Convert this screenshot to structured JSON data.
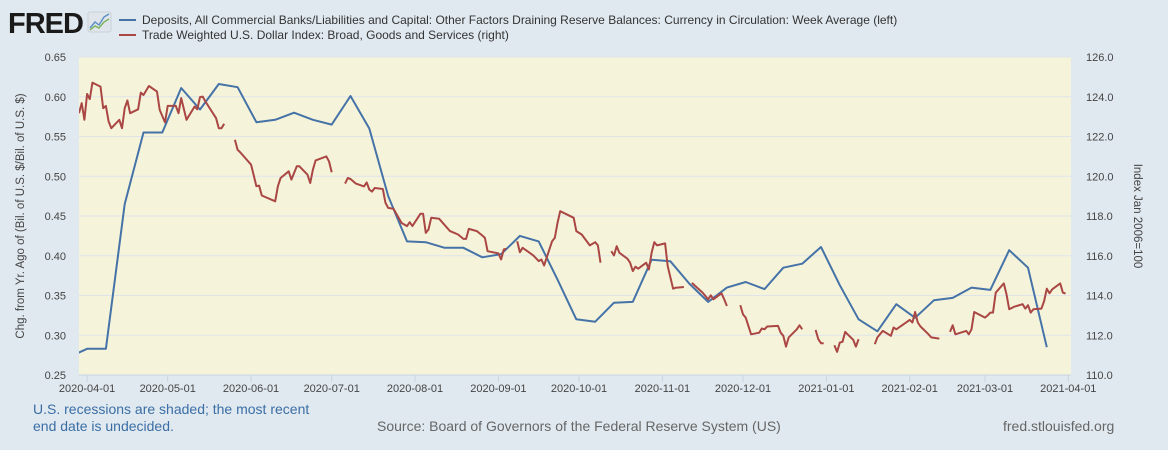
{
  "header": {
    "logo_text": "FRED"
  },
  "notes": {
    "recession_line1": "U.S. recessions are shaded; the most recent",
    "recession_line2": "end date is undecided.",
    "source": "Source: Board of Governors of the Federal Reserve System (US)",
    "site": "fred.stlouisfed.org"
  },
  "colors": {
    "series1": "#4572a7",
    "series2": "#aa4643",
    "plot_bg": "#f5f4da",
    "page_bg": "#e1e9f0",
    "grid": "#dfe3ea"
  },
  "chart_data": {
    "type": "line",
    "title": "",
    "legend_placement": "top",
    "grid": true,
    "x_range": [
      "2020-03-29",
      "2021-04-02"
    ],
    "x_ticks": [
      "2020-04-01",
      "2020-05-01",
      "2020-06-01",
      "2020-07-01",
      "2020-08-01",
      "2020-09-01",
      "2020-10-01",
      "2020-11-01",
      "2020-12-01",
      "2021-01-01",
      "2021-02-01",
      "2021-03-01",
      "2021-04-01"
    ],
    "ylabel_left": "Chg. from Yr. Ago of (Bil. of U.S. $/Bil. of U.S. $)",
    "ylabel_right": "Index Jan 2006=100",
    "ylim_left": [
      0.25,
      0.65
    ],
    "ylim_right": [
      110,
      126
    ],
    "y_left_ticks": [
      "0.25",
      "0.30",
      "0.35",
      "0.40",
      "0.45",
      "0.50",
      "0.55",
      "0.60",
      "0.65"
    ],
    "y_right_ticks": [
      "110.0",
      "112.0",
      "114.0",
      "116.0",
      "118.0",
      "120.0",
      "122.0",
      "124.0",
      "126.0"
    ],
    "series": [
      {
        "name": "Deposits, All Commercial Banks/Liabilities and Capital: Other Factors Draining Reserve Balances: Currency in Circulation: Week Average (left)",
        "axis": "left",
        "start": "2020-03-25",
        "step_days": 7,
        "values": [
          0.272,
          0.283,
          0.283,
          0.465,
          0.555,
          0.555,
          0.611,
          0.584,
          0.616,
          0.612,
          0.568,
          0.571,
          0.58,
          0.571,
          0.565,
          0.601,
          0.56,
          0.475,
          0.418,
          0.417,
          0.41,
          0.41,
          0.398,
          0.402,
          0.425,
          0.418,
          0.37,
          0.32,
          0.317,
          0.341,
          0.342,
          0.395,
          0.393,
          0.365,
          0.342,
          0.36,
          0.367,
          0.358,
          0.385,
          0.39,
          0.411,
          0.363,
          0.32,
          0.305,
          0.339,
          0.322,
          0.344,
          0.347,
          0.36,
          0.357,
          0.407,
          0.385,
          0.285
        ]
      },
      {
        "name": "Trade Weighted U.S. Dollar Index: Broad, Goods and Services (right)",
        "axis": "right",
        "segments": [
          [
            [
              "2020-03-29",
              123.17
            ],
            [
              "2020-03-30",
              123.68
            ],
            [
              "2020-03-31",
              122.84
            ],
            [
              "2020-04-01",
              124.14
            ],
            [
              "2020-04-02",
              123.88
            ],
            [
              "2020-04-03",
              124.71
            ],
            [
              "2020-04-06",
              124.51
            ],
            [
              "2020-04-07",
              123.42
            ],
            [
              "2020-04-08",
              123.54
            ],
            [
              "2020-04-09",
              122.76
            ],
            [
              "2020-04-10",
              122.42
            ],
            [
              "2020-04-13",
              122.84
            ],
            [
              "2020-04-14",
              122.42
            ],
            [
              "2020-04-15",
              123.42
            ],
            [
              "2020-04-16",
              123.81
            ],
            [
              "2020-04-17",
              123.17
            ],
            [
              "2020-04-20",
              123.37
            ],
            [
              "2020-04-21",
              124.21
            ],
            [
              "2020-04-22",
              124.09
            ],
            [
              "2020-04-24",
              124.54
            ],
            [
              "2020-04-27",
              124.26
            ],
            [
              "2020-04-28",
              123.34
            ],
            [
              "2020-04-30",
              122.71
            ],
            [
              "2020-05-01",
              123.54
            ],
            [
              "2020-05-04",
              123.54
            ],
            [
              "2020-05-05",
              123.17
            ],
            [
              "2020-05-06",
              123.93
            ],
            [
              "2020-05-08",
              122.84
            ],
            [
              "2020-05-11",
              123.51
            ],
            [
              "2020-05-12",
              123.37
            ],
            [
              "2020-05-13",
              123.98
            ],
            [
              "2020-05-14",
              124.01
            ],
            [
              "2020-05-15",
              123.76
            ],
            [
              "2020-05-19",
              122.92
            ],
            [
              "2020-05-20",
              122.42
            ],
            [
              "2020-05-21",
              122.42
            ],
            [
              "2020-05-22",
              122.64
            ]
          ],
          [
            [
              "2020-05-26",
              121.84
            ],
            [
              "2020-05-27",
              121.33
            ],
            [
              "2020-05-28",
              121.2
            ],
            [
              "2020-06-01",
              120.58
            ],
            [
              "2020-06-03",
              119.5
            ],
            [
              "2020-06-04",
              119.53
            ],
            [
              "2020-06-05",
              119.03
            ],
            [
              "2020-06-10",
              118.74
            ],
            [
              "2020-06-11",
              119.5
            ],
            [
              "2020-06-12",
              119.91
            ],
            [
              "2020-06-15",
              120.25
            ],
            [
              "2020-06-16",
              119.83
            ],
            [
              "2020-06-18",
              120.5
            ],
            [
              "2020-06-19",
              120.5
            ],
            [
              "2020-06-22",
              120.08
            ],
            [
              "2020-06-23",
              119.66
            ],
            [
              "2020-06-24",
              120.33
            ],
            [
              "2020-06-25",
              120.8
            ],
            [
              "2020-06-29",
              121.0
            ],
            [
              "2020-06-30",
              120.75
            ],
            [
              "2020-07-01",
              120.2
            ]
          ],
          [
            [
              "2020-07-06",
              119.63
            ],
            [
              "2020-07-07",
              119.91
            ],
            [
              "2020-07-08",
              119.86
            ],
            [
              "2020-07-10",
              119.63
            ],
            [
              "2020-07-13",
              119.49
            ],
            [
              "2020-07-14",
              119.69
            ],
            [
              "2020-07-15",
              119.33
            ],
            [
              "2020-07-16",
              119.23
            ],
            [
              "2020-07-17",
              119.41
            ],
            [
              "2020-07-20",
              119.36
            ],
            [
              "2020-07-21",
              118.66
            ],
            [
              "2020-07-22",
              118.41
            ],
            [
              "2020-07-24",
              118.36
            ],
            [
              "2020-07-27",
              117.65
            ],
            [
              "2020-07-29",
              117.49
            ],
            [
              "2020-07-30",
              117.69
            ],
            [
              "2020-07-31",
              117.49
            ],
            [
              "2020-08-03",
              118.11
            ],
            [
              "2020-08-04",
              118.11
            ],
            [
              "2020-08-05",
              117.15
            ],
            [
              "2020-08-06",
              117.32
            ],
            [
              "2020-08-07",
              117.91
            ],
            [
              "2020-08-10",
              117.86
            ],
            [
              "2020-08-14",
              117.24
            ],
            [
              "2020-08-17",
              117.07
            ],
            [
              "2020-08-19",
              116.85
            ],
            [
              "2020-08-20",
              116.85
            ],
            [
              "2020-08-21",
              117.35
            ],
            [
              "2020-08-24",
              117.24
            ],
            [
              "2020-08-26",
              117.02
            ],
            [
              "2020-08-27",
              116.9
            ],
            [
              "2020-08-28",
              116.23
            ],
            [
              "2020-09-01",
              116.12
            ],
            [
              "2020-09-02",
              115.81
            ],
            [
              "2020-09-03",
              116.32
            ],
            [
              "2020-09-04",
              116.35
            ]
          ],
          [
            [
              "2020-09-08",
              116.73
            ],
            [
              "2020-09-09",
              116.18
            ],
            [
              "2020-09-10",
              116.4
            ],
            [
              "2020-09-14",
              116.02
            ],
            [
              "2020-09-16",
              115.73
            ],
            [
              "2020-09-17",
              115.81
            ],
            [
              "2020-09-18",
              115.51
            ],
            [
              "2020-09-21",
              116.73
            ],
            [
              "2020-09-22",
              116.9
            ],
            [
              "2020-09-23",
              117.65
            ],
            [
              "2020-09-24",
              118.24
            ],
            [
              "2020-09-29",
              117.91
            ],
            [
              "2020-09-30",
              117.24
            ],
            [
              "2020-10-02",
              117.07
            ],
            [
              "2020-10-05",
              116.52
            ],
            [
              "2020-10-07",
              116.68
            ],
            [
              "2020-10-08",
              116.52
            ],
            [
              "2020-10-09",
              115.65
            ]
          ],
          [
            [
              "2020-10-13",
              116.23
            ],
            [
              "2020-10-14",
              116.02
            ],
            [
              "2020-10-15",
              116.48
            ],
            [
              "2020-10-16",
              116.15
            ],
            [
              "2020-10-19",
              115.85
            ],
            [
              "2020-10-20",
              115.65
            ],
            [
              "2020-10-21",
              115.23
            ],
            [
              "2020-10-22",
              115.45
            ],
            [
              "2020-10-23",
              115.35
            ],
            [
              "2020-10-26",
              115.65
            ],
            [
              "2020-10-27",
              115.31
            ],
            [
              "2020-10-28",
              116.15
            ],
            [
              "2020-10-29",
              116.68
            ],
            [
              "2020-10-30",
              116.52
            ],
            [
              "2020-11-02",
              116.62
            ],
            [
              "2020-11-03",
              115.48
            ],
            [
              "2020-11-05",
              114.34
            ],
            [
              "2020-11-06",
              114.39
            ],
            [
              "2020-11-09",
              114.43
            ]
          ],
          [
            [
              "2020-11-12",
              114.64
            ],
            [
              "2020-11-13",
              114.51
            ],
            [
              "2020-11-16",
              114.14
            ],
            [
              "2020-11-18",
              113.81
            ],
            [
              "2020-11-19",
              114.01
            ],
            [
              "2020-11-20",
              113.81
            ],
            [
              "2020-11-23",
              114.11
            ],
            [
              "2020-11-24",
              113.81
            ],
            [
              "2020-11-25",
              113.47
            ]
          ],
          [
            [
              "2020-11-30",
              113.51
            ],
            [
              "2020-12-01",
              113.05
            ],
            [
              "2020-12-02",
              112.89
            ],
            [
              "2020-12-04",
              112.05
            ],
            [
              "2020-12-07",
              112.13
            ],
            [
              "2020-12-08",
              112.34
            ],
            [
              "2020-12-09",
              112.3
            ],
            [
              "2020-12-10",
              112.44
            ],
            [
              "2020-12-14",
              112.47
            ],
            [
              "2020-12-15",
              112.13
            ],
            [
              "2020-12-16",
              111.97
            ],
            [
              "2020-12-17",
              111.43
            ],
            [
              "2020-12-18",
              111.89
            ],
            [
              "2020-12-21",
              112.3
            ],
            [
              "2020-12-22",
              112.5
            ],
            [
              "2020-12-23",
              112.3
            ]
          ],
          [
            [
              "2020-12-28",
              112.27
            ],
            [
              "2020-12-29",
              111.8
            ],
            [
              "2020-12-30",
              111.6
            ],
            [
              "2020-12-31",
              111.6
            ]
          ],
          [
            [
              "2021-01-04",
              111.5
            ],
            [
              "2021-01-05",
              111.16
            ],
            [
              "2021-01-06",
              111.63
            ],
            [
              "2021-01-07",
              111.67
            ],
            [
              "2021-01-08",
              112.17
            ],
            [
              "2021-01-11",
              111.77
            ],
            [
              "2021-01-12",
              111.43
            ],
            [
              "2021-01-13",
              111.8
            ]
          ],
          [
            [
              "2021-01-19",
              111.55
            ],
            [
              "2021-01-20",
              111.89
            ],
            [
              "2021-01-22",
              112.22
            ],
            [
              "2021-01-25",
              111.97
            ],
            [
              "2021-01-26",
              112.39
            ],
            [
              "2021-01-27",
              112.3
            ],
            [
              "2021-02-01",
              112.77
            ],
            [
              "2021-02-02",
              112.64
            ],
            [
              "2021-02-03",
              113.17
            ],
            [
              "2021-02-04",
              112.64
            ],
            [
              "2021-02-05",
              112.44
            ],
            [
              "2021-02-08",
              112.05
            ],
            [
              "2021-02-09",
              111.89
            ],
            [
              "2021-02-12",
              111.83
            ]
          ],
          [
            [
              "2021-02-16",
              112.17
            ],
            [
              "2021-02-17",
              112.5
            ],
            [
              "2021-02-18",
              112.05
            ],
            [
              "2021-02-22",
              112.22
            ],
            [
              "2021-02-23",
              112.05
            ],
            [
              "2021-02-24",
              112.3
            ],
            [
              "2021-02-25",
              113.17
            ],
            [
              "2021-03-01",
              112.89
            ],
            [
              "2021-03-02",
              113.0
            ],
            [
              "2021-03-03",
              113.14
            ],
            [
              "2021-03-04",
              113.14
            ],
            [
              "2021-03-05",
              114.14
            ],
            [
              "2021-03-08",
              114.61
            ],
            [
              "2021-03-09",
              114.06
            ],
            [
              "2021-03-10",
              113.31
            ],
            [
              "2021-03-12",
              113.44
            ],
            [
              "2021-03-15",
              113.56
            ],
            [
              "2021-03-16",
              113.34
            ],
            [
              "2021-03-17",
              113.51
            ],
            [
              "2021-03-18",
              113.14
            ],
            [
              "2021-03-19",
              113.31
            ],
            [
              "2021-03-22",
              113.34
            ],
            [
              "2021-03-23",
              113.72
            ],
            [
              "2021-03-24",
              114.34
            ],
            [
              "2021-03-25",
              114.11
            ],
            [
              "2021-03-26",
              114.31
            ],
            [
              "2021-03-29",
              114.61
            ],
            [
              "2021-03-30",
              114.14
            ],
            [
              "2021-03-31",
              114.1
            ]
          ]
        ]
      }
    ]
  }
}
